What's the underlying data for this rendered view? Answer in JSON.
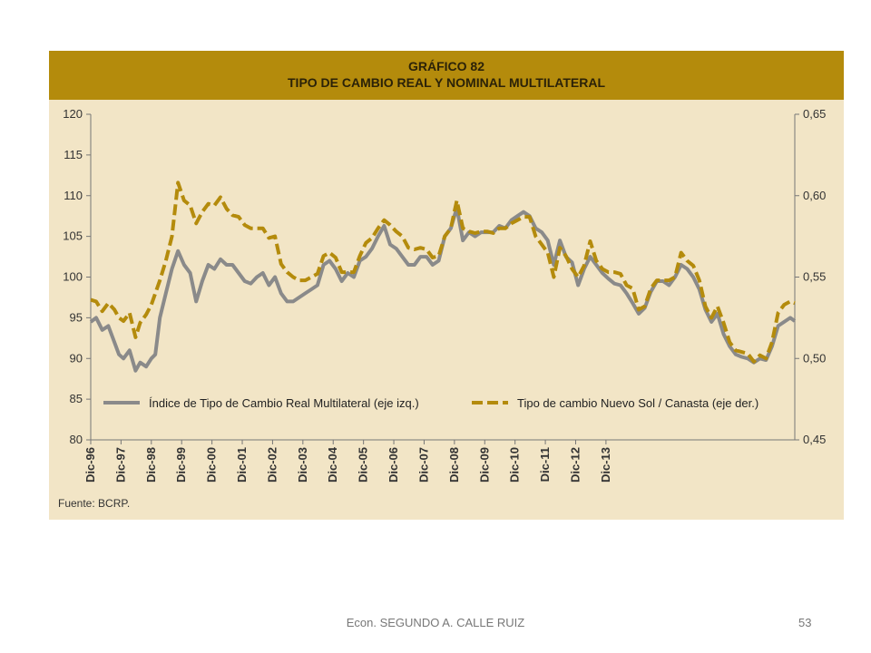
{
  "slide": {
    "footer_text": "Econ. SEGUNDO A. CALLE RUIZ",
    "page_number": "53"
  },
  "colors": {
    "header_bg": "#b48b0c",
    "panel_bg": "#f2e5c6",
    "series_real": "#8a8a8a",
    "series_nominal": "#b48b0c"
  },
  "chart_data": {
    "type": "line",
    "title": "GRÁFICO 82",
    "subtitle": "TIPO DE CAMBIO REAL Y NOMINAL MULTILATERAL",
    "source": "Fuente: BCRP.",
    "x_categories": [
      "Dic-96",
      "Dic-97",
      "Dic-98",
      "Dic-99",
      "Dic-00",
      "Dic-01",
      "Dic-02",
      "Dic-03",
      "Dic-04",
      "Dic-05",
      "Dic-06",
      "Dic-07",
      "Dic-08",
      "Dic-09",
      "Dic-10",
      "Dic-11",
      "Dic-12",
      "Dic-13"
    ],
    "y_left": {
      "min": 80,
      "max": 120,
      "ticks": [
        "80",
        "85",
        "90",
        "95",
        "100",
        "105",
        "110",
        "115",
        "120"
      ]
    },
    "y_right": {
      "min": 0.45,
      "max": 0.65,
      "ticks": [
        "0,45",
        "0,50",
        "0,55",
        "0,60",
        "0,65"
      ]
    },
    "legend": {
      "placement": "inside-bottom"
    },
    "grid": false,
    "series": [
      {
        "name": "Índice de Tipo de Cambio Real Multilateral (eje izq.)",
        "axis": "left",
        "style": "solid",
        "points": [
          [
            1996.92,
            94.5
          ],
          [
            1997.1,
            95
          ],
          [
            1997.3,
            93.5
          ],
          [
            1997.5,
            94
          ],
          [
            1997.7,
            92
          ],
          [
            1997.85,
            90.5
          ],
          [
            1998.0,
            90
          ],
          [
            1998.2,
            91
          ],
          [
            1998.4,
            88.5
          ],
          [
            1998.55,
            89.5
          ],
          [
            1998.75,
            89
          ],
          [
            1998.92,
            90
          ],
          [
            1999.05,
            90.5
          ],
          [
            1999.2,
            95
          ],
          [
            1999.4,
            98
          ],
          [
            1999.6,
            101
          ],
          [
            1999.8,
            103.2
          ],
          [
            2000.0,
            101.5
          ],
          [
            2000.2,
            100.5
          ],
          [
            2000.4,
            97
          ],
          [
            2000.6,
            99.5
          ],
          [
            2000.8,
            101.5
          ],
          [
            2001.0,
            101
          ],
          [
            2001.2,
            102.2
          ],
          [
            2001.4,
            101.5
          ],
          [
            2001.6,
            101.5
          ],
          [
            2001.8,
            100.5
          ],
          [
            2002.0,
            99.5
          ],
          [
            2002.2,
            99.2
          ],
          [
            2002.4,
            100
          ],
          [
            2002.6,
            100.5
          ],
          [
            2002.8,
            99
          ],
          [
            2003.0,
            100
          ],
          [
            2003.2,
            98
          ],
          [
            2003.4,
            97
          ],
          [
            2003.6,
            97
          ],
          [
            2003.8,
            97.5
          ],
          [
            2004.0,
            98
          ],
          [
            2004.2,
            98.5
          ],
          [
            2004.4,
            99
          ],
          [
            2004.6,
            101.5
          ],
          [
            2004.8,
            102
          ],
          [
            2005.0,
            101
          ],
          [
            2005.2,
            99.5
          ],
          [
            2005.4,
            100.5
          ],
          [
            2005.6,
            100
          ],
          [
            2005.8,
            102
          ],
          [
            2006.0,
            102.5
          ],
          [
            2006.2,
            103.5
          ],
          [
            2006.4,
            105
          ],
          [
            2006.6,
            106.3
          ],
          [
            2006.8,
            104
          ],
          [
            2007.0,
            103.5
          ],
          [
            2007.2,
            102.5
          ],
          [
            2007.4,
            101.5
          ],
          [
            2007.6,
            101.5
          ],
          [
            2007.8,
            102.5
          ],
          [
            2008.0,
            102.5
          ],
          [
            2008.2,
            101.5
          ],
          [
            2008.4,
            102
          ],
          [
            2008.6,
            105
          ],
          [
            2008.8,
            106
          ],
          [
            2009.0,
            108.5
          ],
          [
            2009.2,
            104.5
          ],
          [
            2009.4,
            105.5
          ],
          [
            2009.6,
            105
          ],
          [
            2009.8,
            105.5
          ],
          [
            2010.0,
            105.5
          ],
          [
            2010.2,
            105.5
          ],
          [
            2010.4,
            106.3
          ],
          [
            2010.6,
            106
          ],
          [
            2010.8,
            107
          ],
          [
            2011.0,
            107.5
          ],
          [
            2011.2,
            108
          ],
          [
            2011.4,
            107.5
          ],
          [
            2011.6,
            106
          ],
          [
            2011.8,
            105.5
          ],
          [
            2012.0,
            104.5
          ],
          [
            2012.2,
            101.5
          ],
          [
            2012.4,
            104.5
          ],
          [
            2012.6,
            102.5
          ],
          [
            2012.8,
            101.8
          ],
          [
            2013.0,
            99
          ],
          [
            2013.2,
            101
          ],
          [
            2013.4,
            102.5
          ],
          [
            2013.6,
            101.5
          ],
          [
            2013.8,
            100.5
          ],
          [
            2014.0,
            99.8
          ],
          [
            2014.2,
            99.2
          ],
          [
            2014.4,
            99
          ],
          [
            2014.6,
            98
          ],
          [
            2014.8,
            96.8
          ],
          [
            2015.0,
            95.5
          ],
          [
            2015.2,
            96.2
          ],
          [
            2015.4,
            98.2
          ],
          [
            2015.6,
            99.5
          ],
          [
            2015.8,
            99.5
          ],
          [
            2016.0,
            99
          ],
          [
            2016.2,
            100
          ],
          [
            2016.4,
            101.5
          ],
          [
            2016.6,
            101
          ],
          [
            2016.8,
            100
          ],
          [
            2017.0,
            98.5
          ],
          [
            2017.2,
            96
          ],
          [
            2017.4,
            94.5
          ],
          [
            2017.6,
            95.5
          ],
          [
            2017.8,
            93
          ],
          [
            2018.0,
            91.5
          ],
          [
            2018.2,
            90.5
          ],
          [
            2018.4,
            90.2
          ],
          [
            2018.6,
            90
          ],
          [
            2018.8,
            89.5
          ],
          [
            2019.0,
            90
          ],
          [
            2019.2,
            89.8
          ],
          [
            2019.4,
            91.5
          ],
          [
            2019.6,
            94
          ],
          [
            2019.8,
            94.5
          ],
          [
            2020.0,
            95
          ],
          [
            2020.15,
            94.6
          ]
        ]
      },
      {
        "name": "Tipo de cambio Nuevo Sol / Canasta (eje der.)",
        "axis": "right",
        "style": "dashed",
        "points": [
          [
            1996.92,
            0.536
          ],
          [
            1997.1,
            0.535
          ],
          [
            1997.3,
            0.529
          ],
          [
            1997.5,
            0.534
          ],
          [
            1997.7,
            0.53
          ],
          [
            1997.85,
            0.525
          ],
          [
            1998.0,
            0.523
          ],
          [
            1998.2,
            0.528
          ],
          [
            1998.4,
            0.513
          ],
          [
            1998.55,
            0.522
          ],
          [
            1998.75,
            0.527
          ],
          [
            1998.92,
            0.533
          ],
          [
            1999.05,
            0.54
          ],
          [
            1999.2,
            0.548
          ],
          [
            1999.4,
            0.56
          ],
          [
            1999.6,
            0.575
          ],
          [
            1999.8,
            0.608
          ],
          [
            2000.0,
            0.597
          ],
          [
            2000.2,
            0.594
          ],
          [
            2000.4,
            0.583
          ],
          [
            2000.6,
            0.59
          ],
          [
            2000.8,
            0.595
          ],
          [
            2001.0,
            0.594
          ],
          [
            2001.2,
            0.599
          ],
          [
            2001.4,
            0.592
          ],
          [
            2001.6,
            0.588
          ],
          [
            2001.8,
            0.587
          ],
          [
            2002.0,
            0.582
          ],
          [
            2002.2,
            0.58
          ],
          [
            2002.4,
            0.58
          ],
          [
            2002.6,
            0.58
          ],
          [
            2002.8,
            0.574
          ],
          [
            2003.0,
            0.575
          ],
          [
            2003.2,
            0.558
          ],
          [
            2003.4,
            0.553
          ],
          [
            2003.6,
            0.55
          ],
          [
            2003.8,
            0.548
          ],
          [
            2004.0,
            0.548
          ],
          [
            2004.2,
            0.55
          ],
          [
            2004.4,
            0.552
          ],
          [
            2004.6,
            0.563
          ],
          [
            2004.8,
            0.565
          ],
          [
            2005.0,
            0.562
          ],
          [
            2005.2,
            0.553
          ],
          [
            2005.4,
            0.553
          ],
          [
            2005.6,
            0.553
          ],
          [
            2005.8,
            0.563
          ],
          [
            2006.0,
            0.571
          ],
          [
            2006.2,
            0.574
          ],
          [
            2006.4,
            0.58
          ],
          [
            2006.6,
            0.585
          ],
          [
            2006.8,
            0.582
          ],
          [
            2007.0,
            0.578
          ],
          [
            2007.2,
            0.575
          ],
          [
            2007.4,
            0.568
          ],
          [
            2007.6,
            0.567
          ],
          [
            2007.8,
            0.568
          ],
          [
            2008.0,
            0.567
          ],
          [
            2008.2,
            0.562
          ],
          [
            2008.4,
            0.563
          ],
          [
            2008.6,
            0.575
          ],
          [
            2008.8,
            0.58
          ],
          [
            2009.0,
            0.597
          ],
          [
            2009.2,
            0.58
          ],
          [
            2009.4,
            0.578
          ],
          [
            2009.6,
            0.577
          ],
          [
            2009.8,
            0.578
          ],
          [
            2010.0,
            0.578
          ],
          [
            2010.2,
            0.577
          ],
          [
            2010.4,
            0.58
          ],
          [
            2010.6,
            0.58
          ],
          [
            2010.8,
            0.583
          ],
          [
            2011.0,
            0.585
          ],
          [
            2011.2,
            0.587
          ],
          [
            2011.4,
            0.587
          ],
          [
            2011.6,
            0.575
          ],
          [
            2011.8,
            0.57
          ],
          [
            2012.0,
            0.565
          ],
          [
            2012.2,
            0.55
          ],
          [
            2012.4,
            0.568
          ],
          [
            2012.6,
            0.563
          ],
          [
            2012.8,
            0.555
          ],
          [
            2013.0,
            0.55
          ],
          [
            2013.2,
            0.557
          ],
          [
            2013.4,
            0.572
          ],
          [
            2013.6,
            0.56
          ],
          [
            2013.8,
            0.555
          ],
          [
            2014.0,
            0.553
          ],
          [
            2014.2,
            0.553
          ],
          [
            2014.4,
            0.552
          ],
          [
            2014.6,
            0.545
          ],
          [
            2014.8,
            0.543
          ],
          [
            2015.0,
            0.53
          ],
          [
            2015.2,
            0.532
          ],
          [
            2015.4,
            0.543
          ],
          [
            2015.6,
            0.548
          ],
          [
            2015.8,
            0.548
          ],
          [
            2016.0,
            0.548
          ],
          [
            2016.2,
            0.55
          ],
          [
            2016.4,
            0.565
          ],
          [
            2016.6,
            0.56
          ],
          [
            2016.8,
            0.557
          ],
          [
            2017.0,
            0.548
          ],
          [
            2017.2,
            0.532
          ],
          [
            2017.4,
            0.525
          ],
          [
            2017.6,
            0.532
          ],
          [
            2017.8,
            0.522
          ],
          [
            2018.0,
            0.51
          ],
          [
            2018.2,
            0.505
          ],
          [
            2018.4,
            0.504
          ],
          [
            2018.6,
            0.503
          ],
          [
            2018.8,
            0.498
          ],
          [
            2019.0,
            0.502
          ],
          [
            2019.2,
            0.5
          ],
          [
            2019.4,
            0.51
          ],
          [
            2019.6,
            0.528
          ],
          [
            2019.8,
            0.533
          ],
          [
            2020.0,
            0.535
          ],
          [
            2020.15,
            0.534
          ]
        ]
      }
    ]
  }
}
